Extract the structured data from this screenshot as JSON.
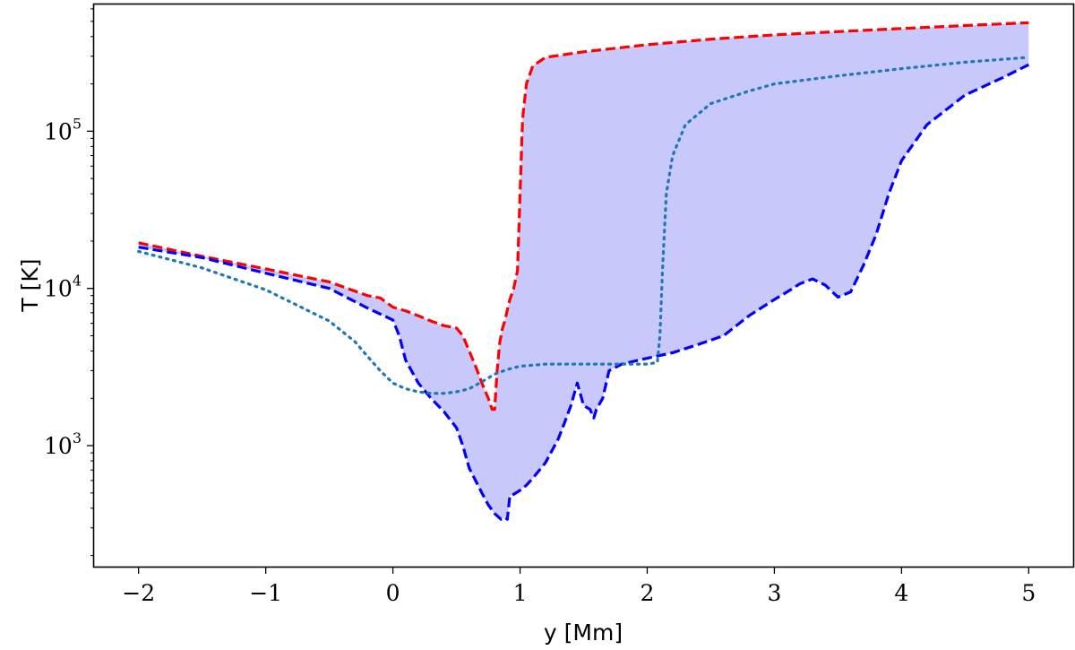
{
  "chart_data": {
    "type": "line",
    "title": "",
    "xlabel": "y [Mm]",
    "ylabel": "T [K]",
    "xlim": [
      -2.35,
      5.35
    ],
    "ylim": [
      170,
      640000
    ],
    "yscale": "log",
    "grid": false,
    "legend": "none",
    "x_ticks": [
      {
        "value": -2,
        "label": "−2"
      },
      {
        "value": -1,
        "label": "−1"
      },
      {
        "value": 0,
        "label": "0"
      },
      {
        "value": 1,
        "label": "1"
      },
      {
        "value": 2,
        "label": "2"
      },
      {
        "value": 3,
        "label": "3"
      },
      {
        "value": 4,
        "label": "4"
      },
      {
        "value": 5,
        "label": "5"
      }
    ],
    "y_ticks": [
      {
        "value": 1000,
        "base": "10",
        "exp": "3"
      },
      {
        "value": 10000,
        "base": "10",
        "exp": "4"
      },
      {
        "value": 100000,
        "base": "10",
        "exp": "5"
      }
    ],
    "series": [
      {
        "style": "dashed",
        "color": "#ff0000",
        "x": [
          -2.0,
          -1.5,
          -1.0,
          -0.5,
          -0.2,
          -0.1,
          0.0,
          0.1,
          0.2,
          0.3,
          0.4,
          0.5,
          0.55,
          0.6,
          0.65,
          0.7,
          0.75,
          0.78,
          0.8,
          0.82,
          0.84,
          0.86,
          0.88,
          0.9,
          0.92,
          0.95,
          0.98,
          1.0,
          1.02,
          1.05,
          1.1,
          1.2,
          1.5,
          2.0,
          2.5,
          3.0,
          3.5,
          4.0,
          4.5,
          5.0
        ],
        "y": [
          19500,
          16000,
          13300,
          11000,
          9000,
          8700,
          7600,
          7200,
          6700,
          6200,
          5800,
          5600,
          5000,
          4000,
          3200,
          2500,
          2000,
          1700,
          1700,
          3000,
          4500,
          5500,
          6200,
          7300,
          8500,
          10000,
          13000,
          40000,
          120000,
          200000,
          260000,
          295000,
          320000,
          355000,
          385000,
          410000,
          430000,
          450000,
          470000,
          490000
        ]
      },
      {
        "style": "dashed",
        "color": "#0000ff",
        "x": [
          -2.0,
          -1.5,
          -1.0,
          -0.5,
          -0.2,
          0.0,
          0.05,
          0.1,
          0.2,
          0.3,
          0.4,
          0.5,
          0.55,
          0.6,
          0.65,
          0.7,
          0.75,
          0.8,
          0.85,
          0.88,
          0.9,
          0.92,
          0.95,
          1.0,
          1.05,
          1.1,
          1.2,
          1.3,
          1.35,
          1.4,
          1.45,
          1.5,
          1.55,
          1.58,
          1.6,
          1.65,
          1.7,
          1.8,
          2.0,
          2.2,
          2.4,
          2.6,
          2.8,
          3.0,
          3.1,
          3.2,
          3.3,
          3.4,
          3.5,
          3.6,
          3.7,
          3.8,
          3.9,
          4.0,
          4.2,
          4.5,
          4.8,
          5.0
        ],
        "y": [
          18300,
          15700,
          12500,
          10000,
          7500,
          6300,
          5000,
          3500,
          2500,
          2000,
          1650,
          1300,
          1000,
          720,
          600,
          500,
          420,
          370,
          340,
          350,
          340,
          480,
          490,
          520,
          560,
          620,
          780,
          1100,
          1400,
          1800,
          2500,
          1800,
          1700,
          1500,
          1700,
          2000,
          3000,
          3300,
          3600,
          3900,
          4400,
          5000,
          6700,
          8500,
          9500,
          10700,
          11500,
          10500,
          8800,
          9500,
          14000,
          22000,
          40000,
          65000,
          110000,
          170000,
          220000,
          265000
        ]
      },
      {
        "style": "dotted",
        "color": "#1f77b4",
        "x": [
          -2.0,
          -1.5,
          -1.0,
          -0.5,
          -0.3,
          -0.2,
          -0.1,
          0.0,
          0.1,
          0.2,
          0.3,
          0.4,
          0.5,
          0.6,
          0.7,
          0.8,
          0.9,
          1.0,
          1.2,
          1.5,
          1.8,
          2.0,
          2.05,
          2.08,
          2.1,
          2.12,
          2.15,
          2.2,
          2.3,
          2.5,
          2.8,
          3.0,
          3.5,
          4.0,
          4.5,
          5.0
        ],
        "y": [
          17200,
          13500,
          9800,
          6200,
          4600,
          3700,
          3000,
          2500,
          2300,
          2200,
          2150,
          2150,
          2200,
          2300,
          2550,
          2850,
          3050,
          3200,
          3300,
          3300,
          3300,
          3300,
          3350,
          3400,
          5000,
          13000,
          40000,
          70000,
          110000,
          150000,
          180000,
          200000,
          225000,
          250000,
          275000,
          295000
        ]
      }
    ],
    "band": {
      "color": "#c8c8fa",
      "between": [
        0,
        1
      ]
    }
  }
}
